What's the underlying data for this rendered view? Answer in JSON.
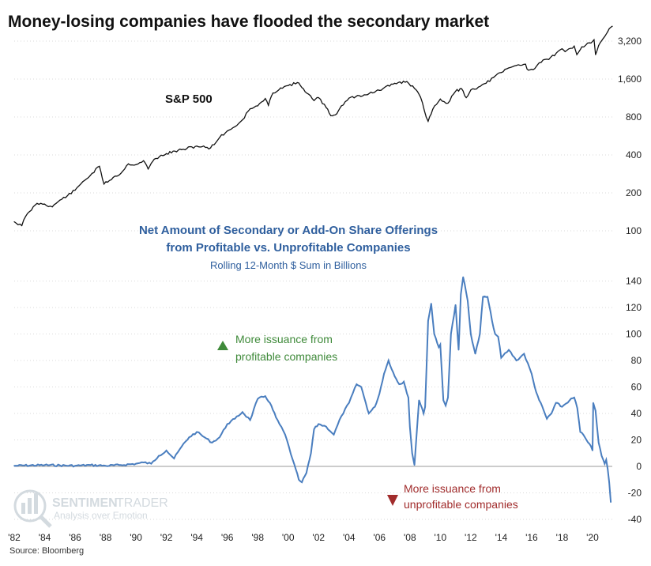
{
  "title": "Money-losing companies have flooded the secondary market",
  "source": "Source: Bloomberg",
  "watermark": {
    "brand_left": "SENTIMEN",
    "brand_right": "TRADER",
    "tagline": "Analysis over Emotion"
  },
  "colors": {
    "sp500_line": "#111111",
    "offerings_line": "#4a7ebf",
    "up_note": "#3f8a3a",
    "down_note": "#a12c2c",
    "subtitle_blue": "#2f5f9e",
    "watermark": "#cfd6dc"
  },
  "chart_data": [
    {
      "type": "line",
      "name": "S&P 500",
      "series_label": "S&P 500",
      "y_scale": "log",
      "y_ticks": [
        100,
        200,
        400,
        800,
        1600,
        3200
      ],
      "y_tick_labels": [
        "100",
        "200",
        "400",
        "800",
        "1,600",
        "3,200"
      ],
      "x_range": [
        1982,
        2021.3
      ],
      "points": [
        [
          1982.0,
          118
        ],
        [
          1982.5,
          110
        ],
        [
          1982.75,
          130
        ],
        [
          1983.0,
          142
        ],
        [
          1983.5,
          165
        ],
        [
          1984.0,
          163
        ],
        [
          1984.5,
          155
        ],
        [
          1985.0,
          175
        ],
        [
          1985.5,
          190
        ],
        [
          1986.0,
          210
        ],
        [
          1986.5,
          245
        ],
        [
          1987.0,
          275
        ],
        [
          1987.6,
          325
        ],
        [
          1987.9,
          235
        ],
        [
          1988.5,
          265
        ],
        [
          1989.0,
          285
        ],
        [
          1989.5,
          340
        ],
        [
          1990.0,
          335
        ],
        [
          1990.5,
          360
        ],
        [
          1990.8,
          310
        ],
        [
          1991.2,
          370
        ],
        [
          1992.0,
          410
        ],
        [
          1993.0,
          440
        ],
        [
          1994.0,
          470
        ],
        [
          1994.9,
          455
        ],
        [
          1995.5,
          550
        ],
        [
          1996.0,
          620
        ],
        [
          1996.5,
          670
        ],
        [
          1997.0,
          760
        ],
        [
          1997.5,
          930
        ],
        [
          1998.0,
          980
        ],
        [
          1998.5,
          1120
        ],
        [
          1998.7,
          990
        ],
        [
          1999.0,
          1240
        ],
        [
          1999.5,
          1360
        ],
        [
          2000.0,
          1420
        ],
        [
          2000.6,
          1500
        ],
        [
          2001.0,
          1340
        ],
        [
          2001.7,
          1080
        ],
        [
          2002.0,
          1140
        ],
        [
          2002.5,
          950
        ],
        [
          2002.8,
          820
        ],
        [
          2003.2,
          850
        ],
        [
          2003.5,
          980
        ],
        [
          2004.0,
          1130
        ],
        [
          2005.0,
          1200
        ],
        [
          2006.0,
          1300
        ],
        [
          2007.0,
          1480
        ],
        [
          2007.8,
          1530
        ],
        [
          2008.3,
          1350
        ],
        [
          2008.7,
          1150
        ],
        [
          2008.95,
          900
        ],
        [
          2009.2,
          740
        ],
        [
          2009.5,
          920
        ],
        [
          2010.0,
          1110
        ],
        [
          2010.5,
          1030
        ],
        [
          2011.0,
          1280
        ],
        [
          2011.4,
          1340
        ],
        [
          2011.7,
          1140
        ],
        [
          2012.0,
          1310
        ],
        [
          2012.5,
          1380
        ],
        [
          2013.0,
          1480
        ],
        [
          2013.5,
          1650
        ],
        [
          2014.0,
          1800
        ],
        [
          2014.5,
          1960
        ],
        [
          2015.0,
          2050
        ],
        [
          2015.6,
          2100
        ],
        [
          2015.7,
          1920
        ],
        [
          2016.1,
          1900
        ],
        [
          2016.5,
          2150
        ],
        [
          2017.0,
          2300
        ],
        [
          2017.5,
          2450
        ],
        [
          2018.0,
          2780
        ],
        [
          2018.2,
          2640
        ],
        [
          2018.8,
          2920
        ],
        [
          2018.97,
          2500
        ],
        [
          2019.3,
          2880
        ],
        [
          2019.8,
          3100
        ],
        [
          2020.1,
          3280
        ],
        [
          2020.2,
          2500
        ],
        [
          2020.4,
          2950
        ],
        [
          2020.7,
          3350
        ],
        [
          2021.0,
          3800
        ],
        [
          2021.3,
          4200
        ]
      ]
    },
    {
      "type": "line",
      "title": "Net Amount of Secondary or Add-On Share Offerings",
      "title_line2": "from Profitable vs. Unprofitable Companies",
      "subtitle": "Rolling 12-Month $ Sum in Billions",
      "y_range": [
        -40,
        145
      ],
      "y_ticks": [
        -40,
        -20,
        0,
        20,
        40,
        60,
        80,
        100,
        120,
        140
      ],
      "x_range": [
        1982,
        2021.3
      ],
      "x_tick_labels": [
        "'82",
        "'84",
        "'86",
        "'88",
        "'90",
        "'92",
        "'94",
        "'96",
        "'98",
        "'00",
        "'02",
        "'04",
        "'06",
        "'08",
        "'10",
        "'12",
        "'14",
        "'16",
        "'18",
        "'20"
      ],
      "annotations": {
        "up_line1": "More issuance from",
        "up_line2": "profitable companies",
        "down_line1": "More issuance from",
        "down_line2": "unprofitable companies"
      },
      "points": [
        [
          1982.0,
          0.5
        ],
        [
          1984.0,
          1
        ],
        [
          1986.0,
          0.5
        ],
        [
          1987.0,
          1
        ],
        [
          1988.0,
          0.5
        ],
        [
          1989.0,
          1
        ],
        [
          1990.0,
          2
        ],
        [
          1990.5,
          3
        ],
        [
          1991.0,
          2
        ],
        [
          1991.5,
          8
        ],
        [
          1992.0,
          12
        ],
        [
          1992.5,
          6
        ],
        [
          1993.0,
          15
        ],
        [
          1993.5,
          22
        ],
        [
          1994.0,
          26
        ],
        [
          1994.5,
          22
        ],
        [
          1995.0,
          18
        ],
        [
          1995.5,
          22
        ],
        [
          1996.0,
          32
        ],
        [
          1996.5,
          36
        ],
        [
          1997.0,
          41
        ],
        [
          1997.5,
          35
        ],
        [
          1998.0,
          51
        ],
        [
          1998.5,
          53
        ],
        [
          1998.8,
          48
        ],
        [
          1999.2,
          37
        ],
        [
          1999.8,
          24
        ],
        [
          2000.3,
          5
        ],
        [
          2000.7,
          -10
        ],
        [
          2000.9,
          -12
        ],
        [
          2001.2,
          -5
        ],
        [
          2001.5,
          10
        ],
        [
          2001.7,
          28
        ],
        [
          2002.0,
          32
        ],
        [
          2002.5,
          30
        ],
        [
          2003.0,
          24
        ],
        [
          2003.5,
          38
        ],
        [
          2004.0,
          48
        ],
        [
          2004.5,
          62
        ],
        [
          2004.8,
          60
        ],
        [
          2005.0,
          52
        ],
        [
          2005.3,
          40
        ],
        [
          2005.7,
          45
        ],
        [
          2006.0,
          55
        ],
        [
          2006.3,
          70
        ],
        [
          2006.6,
          80
        ],
        [
          2007.0,
          68
        ],
        [
          2007.3,
          62
        ],
        [
          2007.6,
          64
        ],
        [
          2007.9,
          52
        ],
        [
          2008.0,
          30
        ],
        [
          2008.15,
          10
        ],
        [
          2008.3,
          1
        ],
        [
          2008.6,
          50
        ],
        [
          2008.9,
          40
        ],
        [
          2009.0,
          45
        ],
        [
          2009.2,
          110
        ],
        [
          2009.4,
          123
        ],
        [
          2009.6,
          100
        ],
        [
          2009.9,
          90
        ],
        [
          2010.0,
          92
        ],
        [
          2010.2,
          50
        ],
        [
          2010.35,
          46
        ],
        [
          2010.5,
          52
        ],
        [
          2010.7,
          100
        ],
        [
          2011.0,
          122
        ],
        [
          2011.2,
          88
        ],
        [
          2011.35,
          130
        ],
        [
          2011.5,
          143
        ],
        [
          2011.8,
          125
        ],
        [
          2012.0,
          100
        ],
        [
          2012.3,
          85
        ],
        [
          2012.6,
          100
        ],
        [
          2012.8,
          128
        ],
        [
          2013.1,
          128
        ],
        [
          2013.4,
          110
        ],
        [
          2013.6,
          100
        ],
        [
          2013.8,
          98
        ],
        [
          2014.0,
          82
        ],
        [
          2014.5,
          88
        ],
        [
          2015.0,
          80
        ],
        [
          2015.5,
          85
        ],
        [
          2016.0,
          70
        ],
        [
          2016.2,
          60
        ],
        [
          2016.5,
          50
        ],
        [
          2016.8,
          42
        ],
        [
          2017.0,
          36
        ],
        [
          2017.3,
          40
        ],
        [
          2017.6,
          48
        ],
        [
          2018.0,
          45
        ],
        [
          2018.5,
          50
        ],
        [
          2018.8,
          52
        ],
        [
          2019.0,
          44
        ],
        [
          2019.2,
          26
        ],
        [
          2019.5,
          22
        ],
        [
          2019.8,
          17
        ],
        [
          2020.0,
          12
        ],
        [
          2020.05,
          48
        ],
        [
          2020.2,
          42
        ],
        [
          2020.4,
          18
        ],
        [
          2020.6,
          8
        ],
        [
          2020.8,
          2
        ],
        [
          2020.9,
          5
        ],
        [
          2021.0,
          -2
        ],
        [
          2021.1,
          -12
        ],
        [
          2021.2,
          -27
        ]
      ]
    }
  ]
}
